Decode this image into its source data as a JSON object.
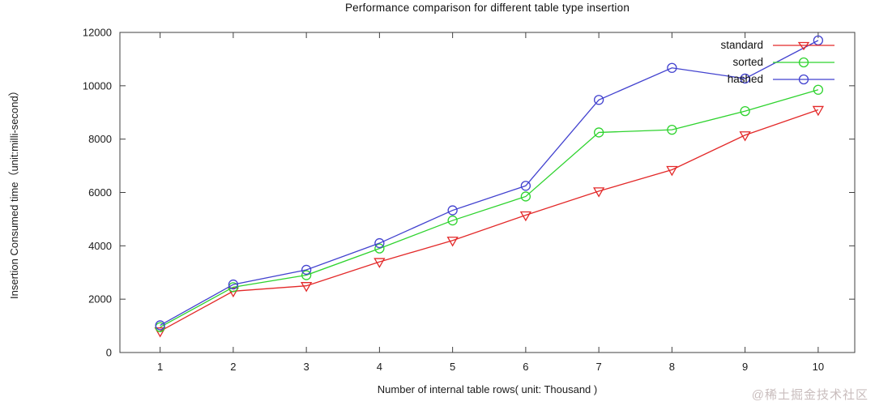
{
  "page": {
    "watermark": "@稀土掘金技术社区"
  },
  "chart_data": {
    "type": "line",
    "title": "Performance comparison for different table type insertion",
    "xlabel": "Number of internal table rows( unit: Thousand )",
    "ylabel": "Insertion Consumed time（unit:milli-second）",
    "x": [
      1,
      2,
      3,
      4,
      5,
      6,
      7,
      8,
      9,
      10
    ],
    "y_ticks": [
      0,
      2000,
      4000,
      6000,
      8000,
      10000,
      12000
    ],
    "xlim": [
      0.45,
      10.5
    ],
    "ylim": [
      0,
      12000
    ],
    "grid": false,
    "legend_position": "top-right-inside",
    "frame_color": "#404040",
    "series": [
      {
        "name": "standard",
        "color": "#e32929",
        "marker": "triangle-down",
        "values": [
          800,
          2300,
          2500,
          3400,
          4200,
          5150,
          6050,
          6850,
          8150,
          9100
        ]
      },
      {
        "name": "sorted",
        "color": "#2ed32e",
        "marker": "circle",
        "values": [
          950,
          2450,
          2900,
          3900,
          4950,
          5850,
          8250,
          8350,
          9050,
          9850
        ]
      },
      {
        "name": "hashed",
        "color": "#4242cf",
        "marker": "circle",
        "values": [
          1020,
          2550,
          3100,
          4100,
          5330,
          6250,
          9470,
          10670,
          10270,
          11700
        ]
      }
    ]
  }
}
